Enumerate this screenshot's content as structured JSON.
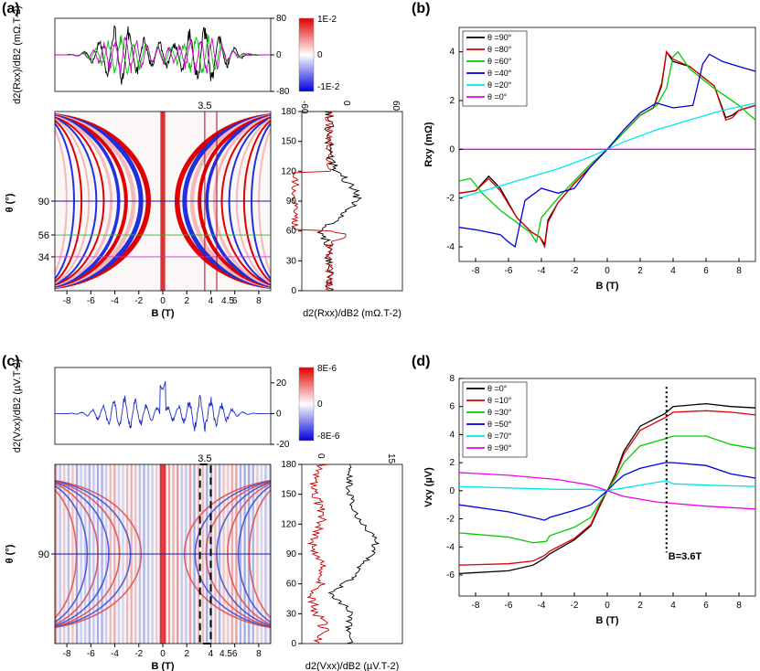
{
  "panel_labels": [
    "(a)",
    "(b)",
    "(c)",
    "(d)"
  ],
  "chart_data": [
    {
      "id": "a_top",
      "type": "line",
      "ylabel": "d2(Rxx)/dB2 (mΩ.T-2)",
      "yticks": [
        "80",
        "0",
        "-80"
      ],
      "ylim": [
        -80,
        80
      ],
      "xlim": [
        -9,
        9
      ],
      "series_colors": [
        "#000000",
        "#00cc00",
        "#cc00cc"
      ]
    },
    {
      "id": "a_colorbar",
      "type": "heatmap",
      "labels": [
        "1E-2",
        "0",
        "-1E-2"
      ]
    },
    {
      "id": "a_map",
      "type": "heatmap",
      "xlabel": "B (T)",
      "ylabel": "θ (°)",
      "xlim": [
        -9,
        9
      ],
      "ylim": [
        0,
        180
      ],
      "xticks": [
        "-8",
        "-6",
        "-4",
        "-2",
        "0",
        "2",
        "4",
        "6",
        "8"
      ],
      "yticks_marked": [
        "90",
        "56",
        "34"
      ],
      "markers": {
        "b_top": "3.5",
        "b_bottom": "4.5"
      },
      "lines": [
        {
          "theta": 90,
          "color": "#1a1aaa"
        },
        {
          "theta": 56,
          "color": "#22bb22"
        },
        {
          "theta": 34,
          "color": "#cc33cc"
        }
      ]
    },
    {
      "id": "a_side",
      "type": "line",
      "xlabel": "d2(Rxx)/dB2 (mΩ.T-2)",
      "yticks": [
        "180",
        "150",
        "120",
        "90",
        "60",
        "30",
        "0"
      ],
      "ylim": [
        0,
        180
      ],
      "xticks_top": [
        "-60",
        "0",
        "60"
      ],
      "series": [
        {
          "name": "black",
          "color": "#000000"
        },
        {
          "name": "red",
          "color": "#cc0000"
        }
      ]
    },
    {
      "id": "b",
      "type": "line",
      "title": "(b)",
      "xlabel": "B (T)",
      "ylabel": "Rxy (mΩ)",
      "xlim": [
        -9,
        9
      ],
      "ylim": [
        -4.6,
        5
      ],
      "xticks": [
        "-8",
        "-6",
        "-4",
        "-2",
        "0",
        "2",
        "4",
        "6",
        "8"
      ],
      "yticks": [
        "4",
        "2",
        "0",
        "-2",
        "-4"
      ],
      "legend": [
        {
          "label": "θ =90°",
          "color": "#000000"
        },
        {
          "label": "θ =80°",
          "color": "#dd0000"
        },
        {
          "label": "θ =60°",
          "color": "#00cc00"
        },
        {
          "label": "θ =40°",
          "color": "#0000dd"
        },
        {
          "label": "θ =20°",
          "color": "#00e5ee"
        },
        {
          "label": "θ =0°",
          "color": "#ee00ee"
        }
      ],
      "series": [
        {
          "name": "θ =90°",
          "x": [
            -9,
            -8,
            -7.2,
            -6.5,
            -5.5,
            -4.6,
            -4.1,
            -3.8,
            -3.6,
            -3,
            -2,
            -1,
            0,
            1,
            2,
            2.8,
            3.3,
            3.6,
            4,
            5,
            6.5,
            7.2,
            7.6,
            8,
            9
          ],
          "y": [
            -1.8,
            -1.7,
            -1.1,
            -1.6,
            -2.8,
            -3.4,
            -3.6,
            -3.9,
            -2.9,
            -2.2,
            -1.4,
            -0.7,
            0,
            0.7,
            1.4,
            1.7,
            2.6,
            4.0,
            3.6,
            3.4,
            2.6,
            1.3,
            1.4,
            1.6,
            1.8
          ]
        },
        {
          "name": "θ =80°",
          "x": [
            -9,
            -8,
            -7.2,
            -6.5,
            -5.5,
            -4.6,
            -4.1,
            -3.8,
            -3.6,
            -3,
            -2,
            -1,
            0,
            1,
            2,
            2.8,
            3.3,
            3.6,
            4,
            5,
            6.5,
            7.2,
            7.6,
            8,
            9
          ],
          "y": [
            -1.8,
            -1.7,
            -1.2,
            -1.7,
            -2.8,
            -3.4,
            -3.6,
            -4.0,
            -3.0,
            -2.2,
            -1.4,
            -0.7,
            0,
            0.7,
            1.4,
            1.7,
            2.7,
            4.0,
            3.7,
            3.4,
            2.6,
            1.2,
            1.3,
            1.6,
            1.8
          ]
        },
        {
          "name": "θ =60°",
          "x": [
            -9,
            -8.3,
            -7.6,
            -6.5,
            -5.5,
            -4.7,
            -4.3,
            -4,
            -3,
            -2,
            -1,
            0,
            1,
            2,
            3,
            3.6,
            4,
            4.3,
            5,
            6.5,
            8,
            8.5,
            9
          ],
          "y": [
            -1.3,
            -1.2,
            -1.8,
            -2.5,
            -3.0,
            -3.4,
            -3.8,
            -2.8,
            -2.0,
            -1.3,
            -0.6,
            0,
            0.7,
            1.4,
            1.8,
            2.5,
            3.8,
            4.0,
            3.3,
            2.5,
            1.8,
            1.5,
            1.2
          ]
        },
        {
          "name": "θ =40°",
          "x": [
            -9,
            -8,
            -6.5,
            -6,
            -5.6,
            -5,
            -4,
            -3,
            -2,
            -1,
            0,
            1,
            2,
            3,
            4,
            5.2,
            5.8,
            6.2,
            7,
            8,
            9
          ],
          "y": [
            -3.2,
            -3.3,
            -3.5,
            -3.8,
            -4.0,
            -2.1,
            -1.6,
            -1.8,
            -1.6,
            -0.7,
            0,
            0.8,
            1.5,
            1.9,
            1.7,
            1.8,
            3.5,
            3.9,
            3.6,
            3.4,
            3.2
          ]
        },
        {
          "name": "θ =20°",
          "x": [
            -9,
            -7,
            -5,
            -3,
            -1,
            0,
            1,
            3,
            5,
            7,
            9
          ],
          "y": [
            -2.0,
            -1.6,
            -1.2,
            -0.8,
            -0.3,
            0,
            0.3,
            0.8,
            1.2,
            1.6,
            1.9
          ]
        },
        {
          "name": "θ =0°",
          "x": [
            -9,
            9
          ],
          "y": [
            0,
            0
          ]
        }
      ]
    },
    {
      "id": "c_top",
      "type": "line",
      "ylabel": "d2(Vxx)/dB2 (µV.T-2)",
      "yticks": [
        "20",
        "0",
        "-20"
      ],
      "ylim": [
        -20,
        30
      ],
      "xlim": [
        -9,
        9
      ],
      "series_colors": [
        "#1a2ecc"
      ]
    },
    {
      "id": "c_colorbar",
      "type": "heatmap",
      "labels": [
        "8E-6",
        "0",
        "-8E-6"
      ]
    },
    {
      "id": "c_map",
      "type": "heatmap",
      "xlabel": "B (T)",
      "ylabel": "θ (°)",
      "xlim": [
        -9,
        9
      ],
      "ylim": [
        0,
        180
      ],
      "xticks": [
        "-8",
        "-6",
        "-4",
        "-2",
        "0",
        "2",
        "4",
        "6",
        "8"
      ],
      "yticks_marked": [
        "90"
      ],
      "markers": {
        "b_top": "3.5",
        "b_bottom": "4.5"
      }
    },
    {
      "id": "c_side",
      "type": "line",
      "xlabel": "d2(Vxx)/dB2 (µV.T-2)",
      "yticks": [
        "180",
        "150",
        "120",
        "90",
        "60",
        "30",
        "0"
      ],
      "ylim": [
        0,
        180
      ],
      "xticks_top": [
        "0",
        "15"
      ],
      "series": [
        {
          "name": "black",
          "color": "#000000"
        },
        {
          "name": "red",
          "color": "#cc0000"
        }
      ]
    },
    {
      "id": "d",
      "type": "line",
      "title": "(d)",
      "xlabel": "B (T)",
      "ylabel": "Vxy (µV)",
      "xlim": [
        -9,
        9
      ],
      "ylim": [
        -7.5,
        8
      ],
      "xticks": [
        "-8",
        "-6",
        "-4",
        "-2",
        "0",
        "2",
        "4",
        "6",
        "8"
      ],
      "yticks": [
        "8",
        "6",
        "4",
        "2",
        "0",
        "-2",
        "-4",
        "-6"
      ],
      "annotation": "B=3.6T",
      "annotation_x": 3.6,
      "legend": [
        {
          "label": "θ =0°",
          "color": "#000000"
        },
        {
          "label": "θ =10°",
          "color": "#dd0000"
        },
        {
          "label": "θ =30°",
          "color": "#00cc00"
        },
        {
          "label": "θ =50°",
          "color": "#0000dd"
        },
        {
          "label": "θ =70°",
          "color": "#00e5ee"
        },
        {
          "label": "θ =90°",
          "color": "#ee00ee"
        }
      ],
      "series": [
        {
          "name": "θ =0°",
          "x": [
            -9,
            -6,
            -4.5,
            -3.8,
            -3.5,
            -2,
            -1,
            -0.5,
            0,
            0.5,
            1,
            2,
            3.5,
            4,
            6,
            7.5,
            9
          ],
          "y": [
            -5.9,
            -5.7,
            -5.3,
            -4.8,
            -4.5,
            -3.5,
            -2.5,
            -1.2,
            0,
            1.2,
            2.8,
            4.6,
            5.5,
            6.0,
            6.2,
            6.0,
            5.9
          ]
        },
        {
          "name": "θ =10°",
          "x": [
            -9,
            -6,
            -4.5,
            -3.8,
            -3.5,
            -2,
            -1,
            -0.5,
            0,
            0.5,
            1,
            2,
            3.5,
            4,
            6,
            7.5,
            9
          ],
          "y": [
            -5.3,
            -5.2,
            -5.0,
            -4.6,
            -4.3,
            -3.4,
            -2.4,
            -1.1,
            0,
            1.1,
            2.6,
            4.3,
            5.2,
            5.6,
            5.7,
            5.6,
            5.4
          ]
        },
        {
          "name": "θ =30°",
          "x": [
            -9,
            -6,
            -4.5,
            -3.7,
            -3.5,
            -2,
            -1,
            -0.5,
            0,
            0.5,
            1,
            2,
            3.5,
            4,
            6,
            7.5,
            9
          ],
          "y": [
            -3.0,
            -3.3,
            -3.7,
            -3.6,
            -3.2,
            -2.6,
            -1.9,
            -0.9,
            0,
            0.9,
            2.0,
            3.2,
            3.7,
            3.9,
            3.9,
            3.3,
            3.0
          ]
        },
        {
          "name": "θ =50°",
          "x": [
            -9,
            -6,
            -4.5,
            -3.8,
            -3.5,
            -2,
            -1,
            -0.5,
            0,
            0.5,
            1,
            2,
            3.5,
            4,
            6,
            7.5,
            9
          ],
          "y": [
            -1.0,
            -1.5,
            -1.9,
            -2.1,
            -1.9,
            -1.4,
            -1.0,
            -0.5,
            0,
            0.6,
            1.1,
            1.6,
            2.0,
            2.0,
            1.8,
            1.2,
            0.9
          ]
        },
        {
          "name": "θ =70°",
          "x": [
            -9,
            -6,
            -3,
            -1,
            0,
            1,
            3,
            3.6,
            4,
            6,
            9
          ],
          "y": [
            0.3,
            0.2,
            0.1,
            0.1,
            0,
            0.2,
            0.6,
            0.7,
            0.5,
            0.4,
            0.3
          ]
        },
        {
          "name": "θ =90°",
          "x": [
            -9,
            -6,
            -3,
            -1,
            0,
            1,
            3,
            6,
            9
          ],
          "y": [
            1.3,
            1.1,
            0.8,
            0.4,
            0,
            -0.4,
            -0.8,
            -1.1,
            -1.3
          ]
        }
      ]
    }
  ]
}
